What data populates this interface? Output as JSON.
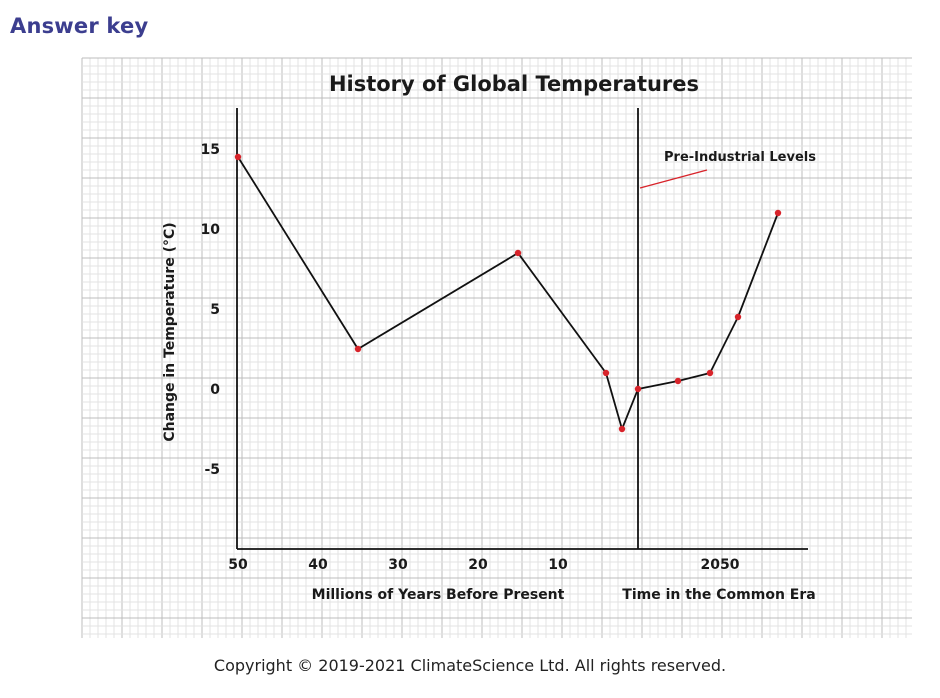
{
  "header": {
    "title": "Answer key"
  },
  "footer": {
    "copyright": "Copyright © 2019-2021 ClimateScience Ltd. All rights reserved."
  },
  "chart_data": {
    "type": "line",
    "title": "History of Global Temperatures",
    "ylabel": "Change in Temperature (°C)",
    "ylim": [
      -10,
      17.5
    ],
    "y_ticks": [
      15,
      10,
      5,
      0,
      -5
    ],
    "y_tick_labels": [
      "15",
      "10",
      "5",
      "0",
      "-5"
    ],
    "grid": true,
    "segments": [
      {
        "xlabel": "Millions of Years Before Present",
        "x_ticks": [
          50,
          40,
          30,
          20,
          10
        ],
        "x_tick_labels": [
          "50",
          "40",
          "30",
          "20",
          "10"
        ],
        "x_reversed": true,
        "points": [
          {
            "x": 50,
            "y": 14.5
          },
          {
            "x": 35,
            "y": 2.5
          },
          {
            "x": 15,
            "y": 8.5
          },
          {
            "x": 4,
            "y": 1
          },
          {
            "x": 2,
            "y": -2.5
          }
        ]
      },
      {
        "xlabel": "Time in the Common Era",
        "x_ticks": [
          2050
        ],
        "x_tick_labels": [
          "2050"
        ],
        "points": [
          {
            "x": 1850,
            "y": 0
          },
          {
            "x": 1950,
            "y": 0.5
          },
          {
            "x": 2030,
            "y": 1
          },
          {
            "x": 2100,
            "y": 4.5
          },
          {
            "x": 2200,
            "y": 11
          }
        ]
      }
    ],
    "annotations": [
      {
        "text": "Pre-Industrial Levels"
      }
    ],
    "colors": {
      "line": "#111111",
      "marker": "#d8232a",
      "annotation_line": "#d8232a",
      "grid": "#cfcfcf"
    }
  }
}
